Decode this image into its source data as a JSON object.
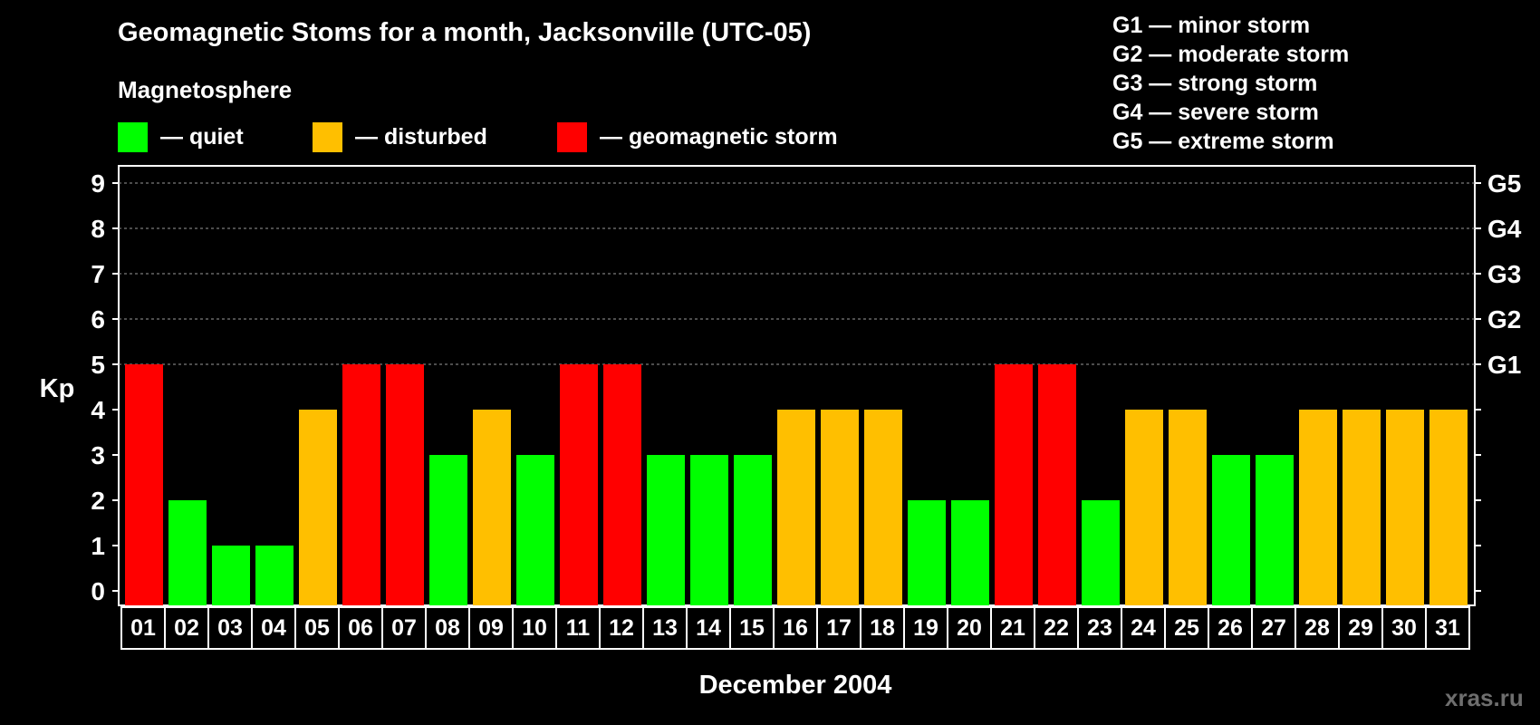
{
  "title": "Geomagnetic Stoms for a month, Jacksonville (UTC-05)",
  "subtitle": "Magnetosphere",
  "legend": [
    {
      "label": "— quiet",
      "color": "#00ff00"
    },
    {
      "label": "— disturbed",
      "color": "#ffbf00"
    },
    {
      "label": "— geomagnetic storm",
      "color": "#ff0000"
    }
  ],
  "storm_scale": [
    "G1 — minor storm",
    "G2 — moderate storm",
    "G3 — strong storm",
    "G4 — severe storm",
    "G5 — extreme storm"
  ],
  "watermark": "xras.ru",
  "chart_data": {
    "type": "bar",
    "title": "Geomagnetic Stoms for a month, Jacksonville (UTC-05)",
    "xlabel": "December 2004",
    "ylabel": "Kp",
    "ylim": [
      0,
      9
    ],
    "yticks": [
      "0",
      "1",
      "2",
      "3",
      "4",
      "5",
      "6",
      "7",
      "8",
      "9"
    ],
    "right_ticks": [
      {
        "kp": 5,
        "label": "G1"
      },
      {
        "kp": 6,
        "label": "G2"
      },
      {
        "kp": 7,
        "label": "G3"
      },
      {
        "kp": 8,
        "label": "G4"
      },
      {
        "kp": 9,
        "label": "G5"
      }
    ],
    "grid": "dashed horizontal at Kp 5-9",
    "categories": [
      "01",
      "02",
      "03",
      "04",
      "05",
      "06",
      "07",
      "08",
      "09",
      "10",
      "11",
      "12",
      "13",
      "14",
      "15",
      "16",
      "17",
      "18",
      "19",
      "20",
      "21",
      "22",
      "23",
      "24",
      "25",
      "26",
      "27",
      "28",
      "29",
      "30",
      "31"
    ],
    "values": [
      5,
      2,
      1,
      1,
      4,
      5,
      5,
      3,
      4,
      3,
      5,
      5,
      3,
      3,
      3,
      4,
      4,
      4,
      2,
      2,
      5,
      5,
      2,
      4,
      4,
      3,
      3,
      4,
      4,
      4,
      4
    ],
    "colors": {
      "quiet": "#00ff00",
      "disturbed": "#ffbf00",
      "storm": "#ff0000"
    }
  }
}
